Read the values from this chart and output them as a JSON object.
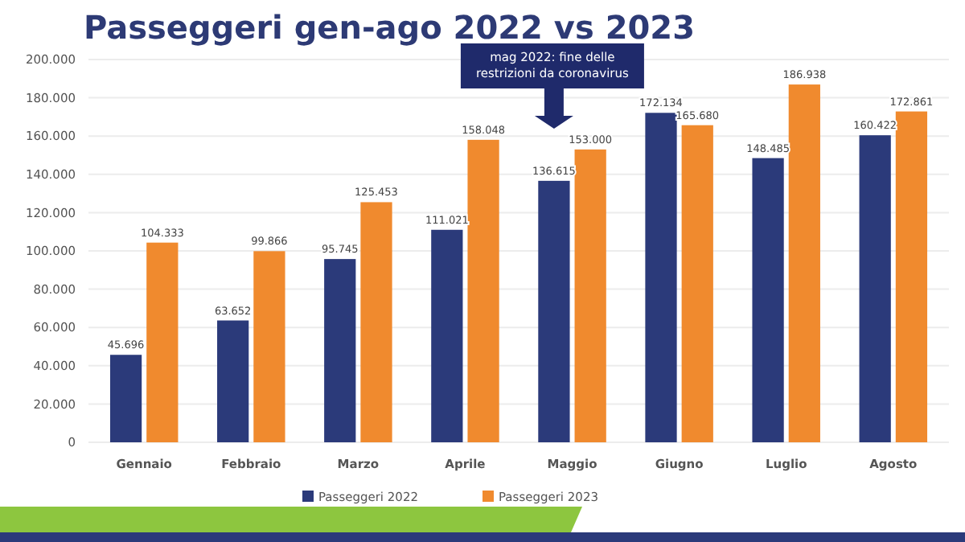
{
  "chart_data": {
    "type": "bar",
    "title": "Passeggeri gen-ago 2022 vs 2023",
    "categories": [
      "Gennaio",
      "Febbraio",
      "Marzo",
      "Aprile",
      "Maggio",
      "Giugno",
      "Luglio",
      "Agosto"
    ],
    "series": [
      {
        "name": "Passeggeri 2022",
        "color": "#2b3a7a",
        "values": [
          45696,
          63652,
          95745,
          111021,
          136615,
          172134,
          148485,
          160422
        ],
        "value_labels": [
          "45.696",
          "63.652",
          "95.745",
          "111.021",
          "136.615",
          "172.134",
          "148.485",
          "160.422"
        ]
      },
      {
        "name": "Passeggeri 2023",
        "color": "#f08a2e",
        "values": [
          104333,
          99866,
          125453,
          158048,
          153000,
          165680,
          186938,
          172861
        ],
        "value_labels": [
          "104.333",
          "99.866",
          "125.453",
          "158.048",
          "153.000",
          "165.680",
          "186.938",
          "172.861"
        ]
      }
    ],
    "ylim": [
      0,
      200000
    ],
    "yticks": [
      {
        "value": 0,
        "label": "0"
      },
      {
        "value": 20000,
        "label": "20.000"
      },
      {
        "value": 40000,
        "label": "40.000"
      },
      {
        "value": 60000,
        "label": "60.000"
      },
      {
        "value": 80000,
        "label": "80.000"
      },
      {
        "value": 100000,
        "label": "100.000"
      },
      {
        "value": 120000,
        "label": "120.000"
      },
      {
        "value": 140000,
        "label": "140.000"
      },
      {
        "value": 160000,
        "label": "160.000"
      },
      {
        "value": 180000,
        "label": "180.000"
      },
      {
        "value": 200000,
        "label": "200.000"
      }
    ],
    "grid": "y",
    "legend": "bottom",
    "annotations": [
      "mag 2022: fine delle restrizioni da coronavirus"
    ]
  }
}
